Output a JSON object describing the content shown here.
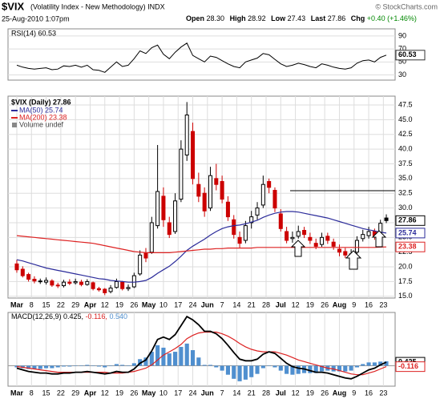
{
  "header": {
    "symbol": "$VIX",
    "name": "(Volatility Index - New Methodology) INDX",
    "date": "25-Aug-2010 1:07pm",
    "copyright": "© StockCharts.com",
    "quote": [
      {
        "label": "Open",
        "value": "28.30"
      },
      {
        "label": "High",
        "value": "28.92"
      },
      {
        "label": "Low",
        "value": "27.43"
      },
      {
        "label": "Last",
        "value": "27.86"
      },
      {
        "label": "Chg",
        "value": "+0.40 (+1.46%)"
      }
    ]
  },
  "chart_data": [
    {
      "type": "line",
      "title": "RSI(14) 60.53",
      "color": "#000000",
      "ylim": [
        22,
        101
      ],
      "yticks": [
        30,
        50,
        70,
        90
      ],
      "xlim": [
        -1.5,
        64.5
      ],
      "grid": true,
      "values": [
        45,
        42,
        40,
        39,
        40,
        41,
        38,
        39,
        44,
        43,
        45,
        42,
        45,
        38,
        37,
        34,
        42,
        50,
        43,
        45,
        55,
        67,
        63,
        72,
        76,
        62,
        55,
        65,
        73,
        79,
        60,
        55,
        50,
        59,
        57,
        52,
        47,
        43,
        41,
        50,
        53,
        56,
        63,
        61,
        54,
        47,
        43,
        45,
        48,
        46,
        43,
        41,
        47,
        45,
        42,
        40,
        39,
        41,
        48,
        52,
        53,
        50,
        57,
        60.53
      ]
    },
    {
      "type": "candlestick",
      "title": "$VIX (Daily) 27.86",
      "up_color": "#000000",
      "down_color": "#cc0000",
      "legend_extra": "Volume undef",
      "open": [
        20.5,
        19.6,
        18.7,
        17.9,
        17.5,
        17.4,
        17.6,
        16.9,
        16.8,
        17.4,
        17.3,
        17.4,
        17.0,
        17.3,
        16.3,
        16.2,
        15.8,
        16.5,
        17.4,
        16.3,
        16.6,
        18.8,
        22.3,
        22.5,
        27.0,
        32.0,
        27.5,
        26.0,
        31.5,
        39.0,
        43.0,
        34.0,
        32.5,
        30.0,
        35.0,
        34.5,
        31.0,
        28.0,
        25.0,
        24.5,
        27.5,
        28.8,
        30.5,
        34.5,
        33.0,
        29.0,
        26.0,
        24.8,
        25.2,
        26.2,
        25.0,
        24.0,
        23.8,
        25.2,
        24.2,
        23.0,
        22.6,
        21.8,
        22.5,
        24.8,
        25.3,
        26.0,
        25.8,
        28.3
      ],
      "high": [
        21.2,
        20.1,
        19.0,
        18.4,
        18.0,
        18.2,
        17.9,
        17.3,
        17.8,
        17.9,
        18.0,
        17.8,
        17.9,
        17.5,
        16.6,
        16.4,
        16.9,
        18.0,
        17.6,
        17.0,
        19.0,
        22.8,
        23.2,
        28.5,
        40.7,
        33.5,
        28.5,
        32.5,
        41.5,
        48.0,
        44.5,
        36.0,
        33.5,
        37.0,
        37.5,
        35.5,
        32.0,
        28.8,
        26.0,
        27.8,
        29.5,
        31.0,
        35.5,
        35.0,
        33.5,
        29.8,
        26.8,
        26.0,
        27.0,
        26.8,
        25.8,
        24.8,
        25.8,
        25.8,
        24.8,
        23.8,
        23.2,
        23.0,
        25.2,
        26.3,
        26.8,
        26.5,
        28.0,
        28.92
      ],
      "low": [
        19.0,
        18.2,
        17.5,
        17.2,
        17.1,
        17.0,
        16.6,
        16.4,
        16.5,
        16.9,
        17.0,
        16.7,
        16.8,
        16.0,
        15.8,
        15.2,
        15.5,
        16.3,
        16.0,
        15.9,
        16.4,
        18.5,
        20.8,
        22.2,
        26.5,
        26.8,
        24.9,
        25.6,
        31.0,
        38.0,
        34.0,
        31.0,
        28.5,
        29.5,
        33.0,
        30.8,
        27.8,
        24.8,
        23.2,
        24.0,
        26.5,
        28.0,
        30.0,
        32.5,
        29.3,
        26.0,
        24.0,
        24.1,
        24.8,
        24.9,
        23.9,
        23.0,
        23.4,
        23.9,
        22.9,
        21.8,
        21.5,
        21.3,
        22.2,
        24.3,
        24.8,
        24.6,
        25.3,
        27.43
      ],
      "close": [
        19.5,
        18.5,
        17.9,
        17.6,
        17.6,
        17.7,
        16.9,
        16.8,
        17.4,
        17.2,
        17.5,
        17.0,
        17.5,
        16.3,
        16.1,
        15.6,
        16.4,
        17.5,
        16.3,
        16.5,
        18.5,
        22.0,
        21.5,
        27.5,
        32.8,
        28.0,
        25.5,
        31.2,
        40.0,
        45.8,
        35.0,
        32.0,
        29.5,
        35.5,
        34.0,
        31.5,
        28.5,
        25.5,
        24.0,
        27.0,
        28.5,
        30.0,
        34.0,
        33.5,
        30.0,
        26.5,
        24.5,
        25.0,
        26.0,
        25.5,
        24.5,
        23.5,
        25.0,
        24.5,
        23.5,
        22.5,
        22.0,
        22.2,
        24.5,
        25.5,
        26.0,
        25.3,
        27.4,
        27.86
      ],
      "series": [
        {
          "name": "MA(50) 25.74",
          "color": "#2b2b9a",
          "values": [
            21.2,
            21.0,
            20.7,
            20.4,
            20.1,
            19.8,
            19.6,
            19.4,
            19.2,
            19.0,
            18.8,
            18.6,
            18.4,
            18.2,
            18.0,
            17.9,
            17.7,
            17.6,
            17.5,
            17.4,
            17.4,
            17.5,
            17.7,
            18.2,
            18.9,
            19.5,
            20.1,
            20.9,
            21.8,
            22.8,
            23.5,
            24.1,
            24.7,
            25.4,
            26.0,
            26.5,
            26.8,
            27.0,
            27.1,
            27.3,
            27.6,
            27.9,
            28.4,
            28.8,
            29.1,
            29.3,
            29.4,
            29.4,
            29.3,
            29.1,
            28.9,
            28.7,
            28.5,
            28.3,
            28.0,
            27.7,
            27.4,
            27.1,
            26.8,
            26.5,
            26.3,
            26.1,
            25.9,
            25.74
          ]
        },
        {
          "name": "MA(200) 23.38",
          "color": "#dd2222",
          "values": [
            25.3,
            25.2,
            25.1,
            25.0,
            24.9,
            24.8,
            24.7,
            24.6,
            24.5,
            24.4,
            24.3,
            24.2,
            24.1,
            24.0,
            23.8,
            23.6,
            23.4,
            23.2,
            23.0,
            22.8,
            22.6,
            22.5,
            22.4,
            22.4,
            22.4,
            22.4,
            22.4,
            22.5,
            22.6,
            22.7,
            22.8,
            22.9,
            23.0,
            23.0,
            23.1,
            23.1,
            23.2,
            23.2,
            23.2,
            23.2,
            23.2,
            23.3,
            23.3,
            23.3,
            23.3,
            23.3,
            23.3,
            23.3,
            23.3,
            23.3,
            23.3,
            23.3,
            23.3,
            23.3,
            23.3,
            23.3,
            23.3,
            23.3,
            23.3,
            23.3,
            23.3,
            23.3,
            23.35,
            23.38
          ]
        }
      ],
      "ylim": [
        14.7,
        49.0
      ],
      "yticks": [
        {
          "value": 15,
          "label": "15.0"
        },
        17.5,
        {
          "value": 20,
          "label": "20.0"
        },
        22.5,
        {
          "value": 25,
          "label": "25.0"
        },
        27.5,
        {
          "value": 30,
          "label": "30.0"
        },
        32.5,
        {
          "value": 35,
          "label": "35.0"
        },
        37.5,
        {
          "value": 40,
          "label": "40.0"
        },
        42.5,
        {
          "value": 45,
          "label": "45.0"
        },
        47.5
      ],
      "xlim": [
        -1.5,
        64.5
      ],
      "grid": true,
      "xticks": [
        {
          "value": 0,
          "label": "Mar"
        },
        {
          "value": 2.5,
          "label": "8"
        },
        {
          "value": 5,
          "label": "15"
        },
        {
          "value": 7.5,
          "label": "22"
        },
        {
          "value": 10,
          "label": "29"
        },
        {
          "value": 12.5,
          "label": "Apr"
        },
        {
          "value": 15,
          "label": "12"
        },
        {
          "value": 17.5,
          "label": "19"
        },
        {
          "value": 20,
          "label": "26"
        },
        {
          "value": 22.5,
          "label": "May"
        },
        {
          "value": 25,
          "label": "10"
        },
        {
          "value": 27.5,
          "label": "17"
        },
        {
          "value": 30,
          "label": "24"
        },
        {
          "value": 32.5,
          "label": "Jun"
        },
        {
          "value": 35,
          "label": "7"
        },
        {
          "value": 37.5,
          "label": "14"
        },
        {
          "value": 40,
          "label": "21"
        },
        {
          "value": 42.5,
          "label": "28"
        },
        {
          "value": 45,
          "label": "Jul"
        },
        {
          "value": 47.5,
          "label": "12"
        },
        {
          "value": 50,
          "label": "19"
        },
        {
          "value": 52.5,
          "label": "26"
        },
        {
          "value": 55,
          "label": "Aug"
        },
        {
          "value": 57.5,
          "label": "9"
        },
        {
          "value": 60,
          "label": "16"
        },
        {
          "value": 62.5,
          "label": "23"
        }
      ]
    },
    {
      "type": "macd",
      "title": "MACD(12,26,9) 0.425,",
      "title_signal": "-0.116,",
      "title_hist": "0.540",
      "macd": {
        "color": "#000000",
        "values": [
          -0.3,
          -0.5,
          -0.7,
          -0.8,
          -0.9,
          -0.9,
          -1.0,
          -1.0,
          -0.9,
          -0.9,
          -0.8,
          -0.8,
          -0.7,
          -0.8,
          -0.9,
          -1.0,
          -0.9,
          -0.7,
          -0.8,
          -0.8,
          -0.4,
          0.3,
          0.7,
          1.8,
          3.2,
          3.5,
          3.2,
          3.8,
          4.9,
          6.0,
          5.6,
          5.0,
          4.2,
          4.2,
          3.9,
          3.3,
          2.5,
          1.6,
          0.8,
          0.6,
          0.6,
          0.8,
          1.4,
          1.7,
          1.5,
          0.9,
          0.3,
          -0.1,
          -0.3,
          -0.4,
          -0.6,
          -0.8,
          -0.8,
          -0.9,
          -1.1,
          -1.3,
          -1.5,
          -1.6,
          -1.3,
          -0.9,
          -0.5,
          -0.3,
          0.1,
          0.425
        ]
      },
      "signal": {
        "color": "#dd2222",
        "values": [
          -0.1,
          -0.2,
          -0.3,
          -0.4,
          -0.5,
          -0.6,
          -0.7,
          -0.8,
          -0.8,
          -0.8,
          -0.8,
          -0.8,
          -0.8,
          -0.8,
          -0.8,
          -0.8,
          -0.9,
          -0.9,
          -0.9,
          -0.8,
          -0.7,
          -0.5,
          -0.3,
          0.1,
          0.7,
          1.3,
          1.7,
          2.1,
          2.6,
          3.3,
          3.7,
          4.0,
          4.1,
          4.1,
          4.1,
          3.9,
          3.6,
          3.2,
          2.7,
          2.3,
          2.0,
          1.8,
          1.7,
          1.7,
          1.7,
          1.5,
          1.3,
          1.0,
          0.7,
          0.5,
          0.3,
          0.1,
          -0.1,
          -0.3,
          -0.4,
          -0.6,
          -0.8,
          -1.0,
          -1.1,
          -1.1,
          -0.9,
          -0.7,
          -0.4,
          -0.116
        ]
      },
      "histogram": {
        "color": "#4f8fcf",
        "values": [
          -0.2,
          -0.3,
          -0.4,
          -0.4,
          -0.4,
          -0.3,
          -0.3,
          -0.2,
          -0.1,
          -0.1,
          0,
          0,
          0.1,
          0,
          -0.1,
          -0.2,
          0,
          0.2,
          0.1,
          0,
          0.3,
          0.8,
          1.0,
          1.7,
          2.5,
          2.2,
          1.5,
          1.7,
          2.3,
          2.7,
          1.9,
          1.0,
          0.1,
          0.1,
          -0.2,
          -0.6,
          -1.1,
          -1.6,
          -1.9,
          -1.7,
          -1.4,
          -1.0,
          -0.3,
          0,
          -0.2,
          -0.6,
          -1.0,
          -1.1,
          -1.0,
          -0.9,
          -0.9,
          -0.9,
          -0.7,
          -0.6,
          -0.7,
          -0.7,
          -0.7,
          -0.6,
          -0.2,
          0.2,
          0.4,
          0.4,
          0.5,
          0.54
        ]
      },
      "ylim": [
        -2.5,
        6.5
      ],
      "xlim": [
        -1.5,
        64.5
      ],
      "grid": true,
      "xticks": [
        {
          "value": 0,
          "label": "Mar"
        },
        {
          "value": 2.5,
          "label": "8"
        },
        {
          "value": 5,
          "label": "15"
        },
        {
          "value": 7.5,
          "label": "22"
        },
        {
          "value": 10,
          "label": "29"
        },
        {
          "value": 12.5,
          "label": "Apr"
        },
        {
          "value": 15,
          "label": "12"
        },
        {
          "value": 17.5,
          "label": "19"
        },
        {
          "value": 20,
          "label": "26"
        },
        {
          "value": 22.5,
          "label": "May"
        },
        {
          "value": 25,
          "label": "10"
        },
        {
          "value": 27.5,
          "label": "17"
        },
        {
          "value": 30,
          "label": "24"
        },
        {
          "value": 32.5,
          "label": "Jun"
        },
        {
          "value": 35,
          "label": "7"
        },
        {
          "value": 37.5,
          "label": "14"
        },
        {
          "value": 40,
          "label": "21"
        },
        {
          "value": 42.5,
          "label": "28"
        },
        {
          "value": 45,
          "label": "Jul"
        },
        {
          "value": 47.5,
          "label": "12"
        },
        {
          "value": 50,
          "label": "19"
        },
        {
          "value": 52.5,
          "label": "26"
        },
        {
          "value": 55,
          "label": "Aug"
        },
        {
          "value": 57.5,
          "label": "9"
        },
        {
          "value": 60,
          "label": "16"
        },
        {
          "value": 62.5,
          "label": "23"
        }
      ]
    }
  ]
}
